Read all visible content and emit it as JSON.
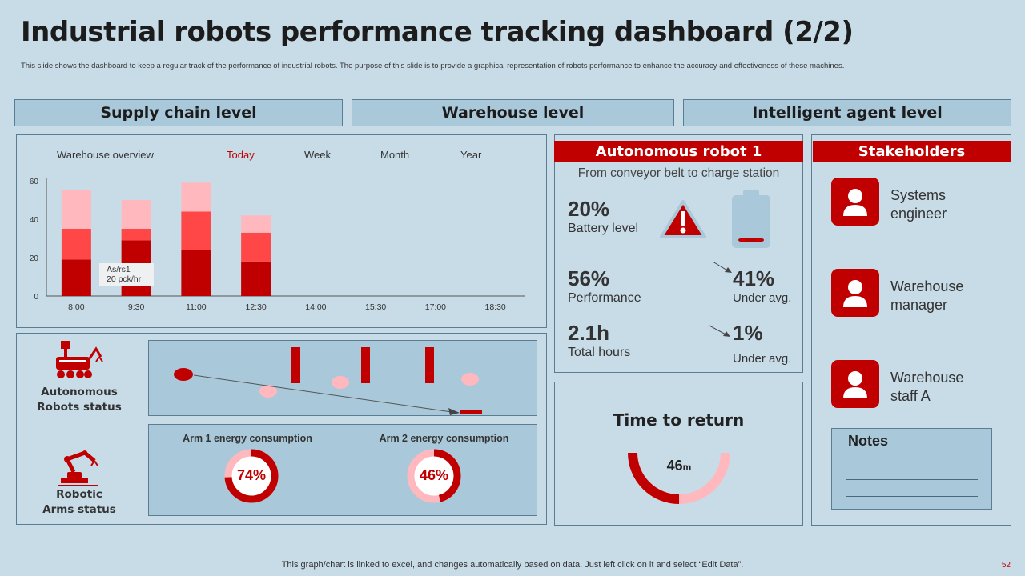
{
  "header": {
    "title": "Industrial robots performance tracking dashboard (2/2)",
    "subtitle": "This slide shows the dashboard to keep a regular track of the performance of industrial robots. The purpose of this slide is to provide a graphical representation of robots performance to enhance the accuracy and effectiveness of these machines."
  },
  "levels": [
    "Supply chain level",
    "Warehouse level",
    "Intelligent agent level"
  ],
  "overview": {
    "label": "Warehouse overview",
    "tabs": [
      "Today",
      "Week",
      "Month",
      "Year"
    ],
    "active_color": "#c00000",
    "tooltip_line1": "As/rs1",
    "tooltip_line2": "20 pck/hr"
  },
  "chart_data": {
    "type": "bar",
    "stacked": true,
    "categories": [
      "8:00",
      "9:30",
      "11:00",
      "12:30",
      "14:00",
      "15:30",
      "17:00",
      "18:30"
    ],
    "series": [
      {
        "color": "#c00000",
        "values": [
          19,
          29,
          24,
          18,
          0,
          0,
          0,
          0
        ]
      },
      {
        "color": "#ff4747",
        "values": [
          16,
          6,
          20,
          15,
          0,
          0,
          0,
          0
        ]
      },
      {
        "color": "#ffb8bd",
        "values": [
          20,
          15,
          15,
          9,
          0,
          0,
          0,
          0
        ]
      }
    ],
    "ylim": [
      0,
      60
    ],
    "yticks": [
      0,
      20,
      40,
      60
    ]
  },
  "status": {
    "robots_label_1": "Autonomous",
    "robots_label_2": "Robots status",
    "arms_label_1": "Robotic",
    "arms_label_2": "Arms status",
    "arm1_title": "Arm 1 energy consumption",
    "arm1_value": "74%",
    "arm1_pct": 74,
    "arm2_title": "Arm 2 energy consumption",
    "arm2_value": "46%",
    "arm2_pct": 46
  },
  "robot": {
    "title": "Autonomous robot 1",
    "route": "From conveyor belt to charge station",
    "battery_value": "20%",
    "battery_label": "Battery level",
    "battery_pct": 20,
    "performance_value": "56%",
    "performance_label": "Performance",
    "perf_delta_value": "41%",
    "perf_delta_label": "Under avg.",
    "hours_value": "2.1h",
    "hours_label": "Total hours",
    "hours_delta_value": "1%",
    "hours_delta_label": "Under avg."
  },
  "return": {
    "title": "Time to return",
    "value": "46",
    "unit": "m"
  },
  "stakeholders": {
    "title": "Stakeholders",
    "people": [
      {
        "line1": "Systems",
        "line2": "engineer"
      },
      {
        "line1": "Warehouse",
        "line2": "manager"
      },
      {
        "line1": "Warehouse",
        "line2": "staff A"
      }
    ]
  },
  "notes": {
    "title": "Notes"
  },
  "footer": {
    "text": "This graph/chart is linked to excel, and changes automatically based on data. Just left click on it and select “Edit Data”.",
    "page": "52"
  },
  "colors": {
    "accent": "#c00000",
    "light": "#ffb8bd",
    "mid": "#ff4747",
    "panel": "#a9c8da",
    "bg": "#c8dce8"
  }
}
